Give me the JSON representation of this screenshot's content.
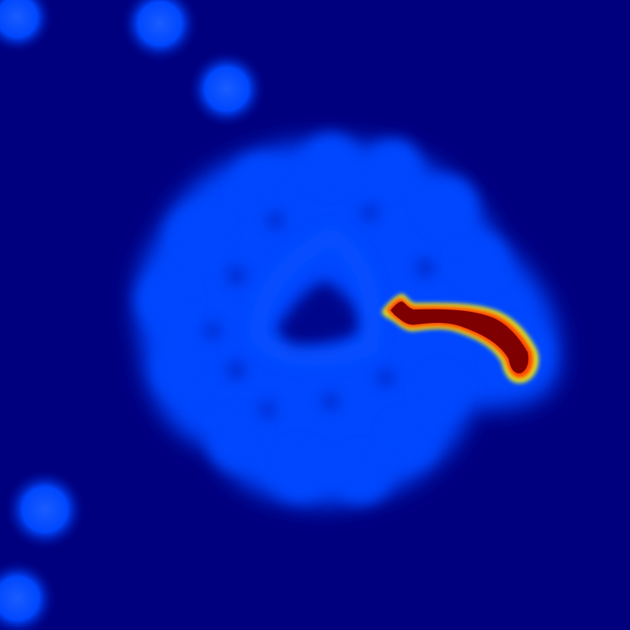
{
  "figure": {
    "kind": "heatmap-render",
    "colormap": "jet",
    "colors": {
      "background": "#00007f",
      "low_level": "#0047ff",
      "glow": "#1a62ff",
      "mid": "#00ffff",
      "high": "#ffff00",
      "peak": "#7f0000",
      "peak_edge": "#ff4000"
    },
    "features": [
      "isolated-blob",
      "isolated-blob",
      "isolated-blob",
      "isolated-blob",
      "isolated-blob",
      "central-ring-cluster",
      "hotspot-streak"
    ]
  }
}
